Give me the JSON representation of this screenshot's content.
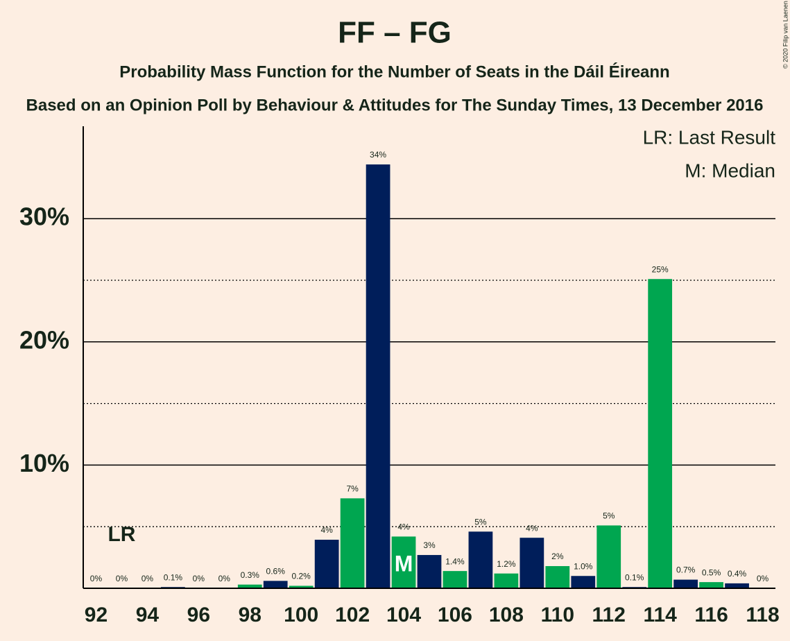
{
  "chart_data": {
    "type": "bar",
    "title": "FF – FG",
    "subtitle": "Probability Mass Function for the Number of Seats in the Dáil Éireann",
    "caption": "Based on an Opinion Poll by Behaviour & Attitudes for The Sunday Times, 13 December 2016",
    "copyright": "© 2020 Filip van Laenen",
    "x": [
      92,
      93,
      94,
      95,
      96,
      97,
      98,
      99,
      100,
      101,
      102,
      103,
      104,
      105,
      106,
      107,
      108,
      109,
      110,
      111,
      112,
      113,
      114,
      115,
      116,
      117,
      118
    ],
    "values": [
      0,
      0,
      0,
      0.1,
      0,
      0,
      0.3,
      0.6,
      0.2,
      3.94,
      7.3,
      34.4,
      4.2,
      2.7,
      1.4,
      4.6,
      1.2,
      4.1,
      1.8,
      1.0,
      5.1,
      0.1,
      25.1,
      0.7,
      0.5,
      0.4,
      0
    ],
    "value_labels": [
      "0%",
      "0%",
      "0%",
      "0.1%",
      "0%",
      "0%",
      "0.3%",
      "0.6%",
      "0.2%",
      "4%",
      "7%",
      "34%",
      "4%",
      "3%",
      "1.4%",
      "5%",
      "1.2%",
      "4%",
      "2%",
      "1.0%",
      "5%",
      "0.1%",
      "25%",
      "0.7%",
      "0.5%",
      "0.4%",
      "0%"
    ],
    "colors": [
      "#00a650",
      "#001e5a",
      "#00a650",
      "#001e5a",
      "#00a650",
      "#001e5a",
      "#00a650",
      "#001e5a",
      "#00a650",
      "#001e5a",
      "#00a650",
      "#001e5a",
      "#00a650",
      "#001e5a",
      "#00a650",
      "#001e5a",
      "#00a650",
      "#001e5a",
      "#00a650",
      "#001e5a",
      "#00a650",
      "#001e5a",
      "#00a650",
      "#001e5a",
      "#00a650",
      "#001e5a",
      "#00a650"
    ],
    "xlim": [
      91.5,
      118.5
    ],
    "xticks": [
      92,
      94,
      96,
      98,
      100,
      102,
      104,
      106,
      108,
      110,
      112,
      114,
      116,
      118
    ],
    "ylim": [
      0,
      37.5
    ],
    "yticks": [
      {
        "value": 10,
        "label": "10%"
      },
      {
        "value": 20,
        "label": "20%"
      },
      {
        "value": 30,
        "label": "30%"
      }
    ],
    "minor_yticks": [
      5,
      15,
      25
    ],
    "last_result": {
      "x": 93,
      "label": "LR"
    },
    "median": {
      "x": 104,
      "label": "M"
    },
    "legend": [
      "LR: Last Result",
      "M: Median"
    ]
  }
}
